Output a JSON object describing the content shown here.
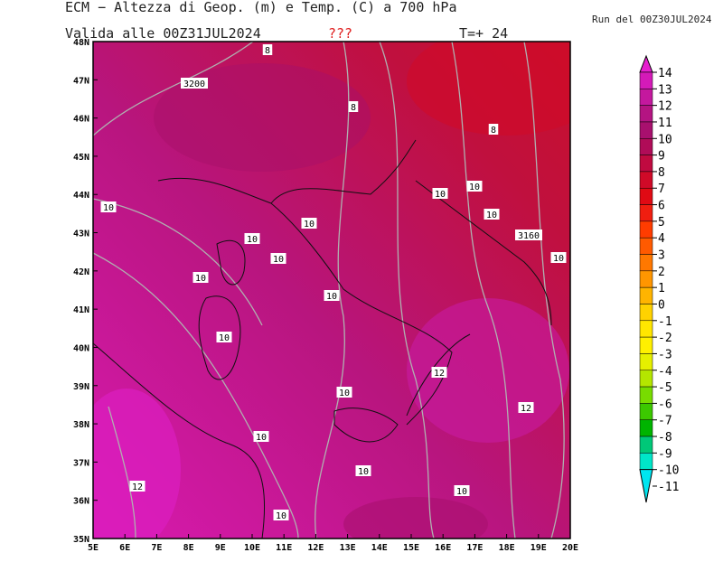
{
  "header": {
    "title": "ECM − Altezza di Geop. (m) e Temp. (C) a 700 hPa",
    "valid": "Valida alle 00Z31JUL2024",
    "flag": "???",
    "step": "T=+ 24",
    "run": "Run del 00Z30JUL2024"
  },
  "map": {
    "lat_labels": [
      "48N",
      "47N",
      "46N",
      "45N",
      "44N",
      "43N",
      "42N",
      "41N",
      "40N",
      "39N",
      "38N",
      "37N",
      "36N",
      "35N"
    ],
    "lon_labels": [
      "5E",
      "6E",
      "7E",
      "8E",
      "9E",
      "10E",
      "11E",
      "12E",
      "13E",
      "14E",
      "15E",
      "16E",
      "17E",
      "18E",
      "19E",
      "20E"
    ],
    "contour_labels": [
      "8",
      "3200",
      "8",
      "8",
      "10",
      "10",
      "10",
      "10",
      "10",
      "3160",
      "10",
      "10",
      "10",
      "10",
      "10",
      "10",
      "12",
      "10",
      "12",
      "10",
      "10",
      "12",
      "10",
      "10"
    ]
  },
  "colorbar": {
    "levels": [
      14,
      13,
      12,
      11,
      10,
      9,
      8,
      7,
      6,
      5,
      4,
      3,
      2,
      1,
      0,
      -1,
      -2,
      -3,
      -4,
      -5,
      -6,
      -7,
      -8,
      -9,
      -10,
      -11
    ],
    "colors": [
      "#e61ecf",
      "#d41ab8",
      "#c4189e",
      "#b41482",
      "#a8106e",
      "#b00c58",
      "#c00a40",
      "#d00a28",
      "#e00a14",
      "#f01e10",
      "#ff3c00",
      "#ff5a00",
      "#ff7800",
      "#ff9600",
      "#ffb400",
      "#ffd200",
      "#ffe600",
      "#fff000",
      "#e6f000",
      "#b4e600",
      "#78dc00",
      "#3cc800",
      "#00b400",
      "#00c878",
      "#00e6c8",
      "#00e6f0"
    ]
  }
}
